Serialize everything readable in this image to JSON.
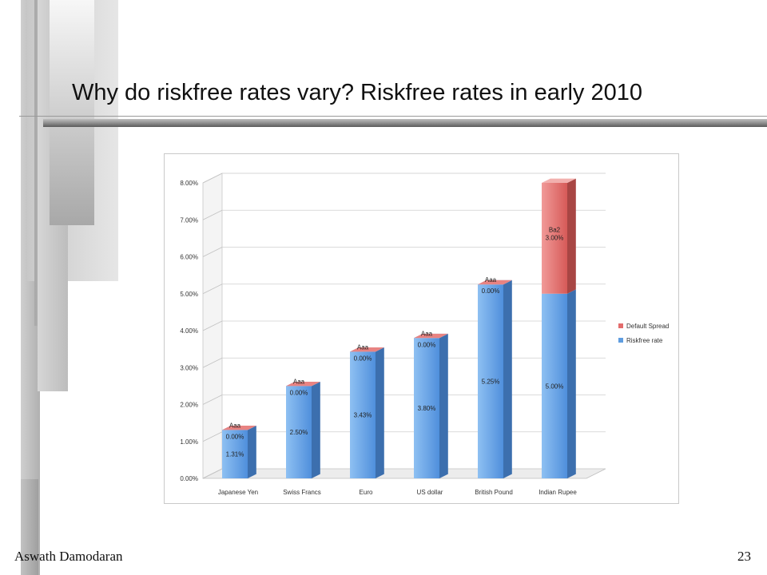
{
  "slide": {
    "title": "Why do riskfree rates vary? Riskfree rates in early 2010",
    "footer_left": "Aswath Damodaran",
    "page_number": "23"
  },
  "chart_data": {
    "type": "bar",
    "stacked": true,
    "three_d": true,
    "categories": [
      "Japanese Yen",
      "Swiss Francs",
      "Euro",
      "US dollar",
      "British Pound",
      "Indian Rupee"
    ],
    "series": [
      {
        "name": "Riskfree rate",
        "color": "#5f9de0",
        "values": [
          1.31,
          2.5,
          3.43,
          3.8,
          5.25,
          5.0
        ],
        "labels": [
          "1.31%",
          "2.50%",
          "3.43%",
          "3.80%",
          "5.25%",
          "5.00%"
        ]
      },
      {
        "name": "Default Spread",
        "color": "#e36c6c",
        "values": [
          0.0,
          0.0,
          0.0,
          0.0,
          0.0,
          3.0
        ],
        "labels": [
          "0.00%",
          "0.00%",
          "0.00%",
          "0.00%",
          "0.00%",
          "3.00%"
        ]
      }
    ],
    "ratings": [
      "Aaa",
      "Aaa",
      "Aaa",
      "Aaa",
      "Aaa",
      "Ba2"
    ],
    "yticks": [
      "0.00%",
      "1.00%",
      "2.00%",
      "3.00%",
      "4.00%",
      "5.00%",
      "6.00%",
      "7.00%",
      "8.00%"
    ],
    "ylim": [
      0,
      8
    ],
    "legend_position": "right",
    "grid": true
  }
}
